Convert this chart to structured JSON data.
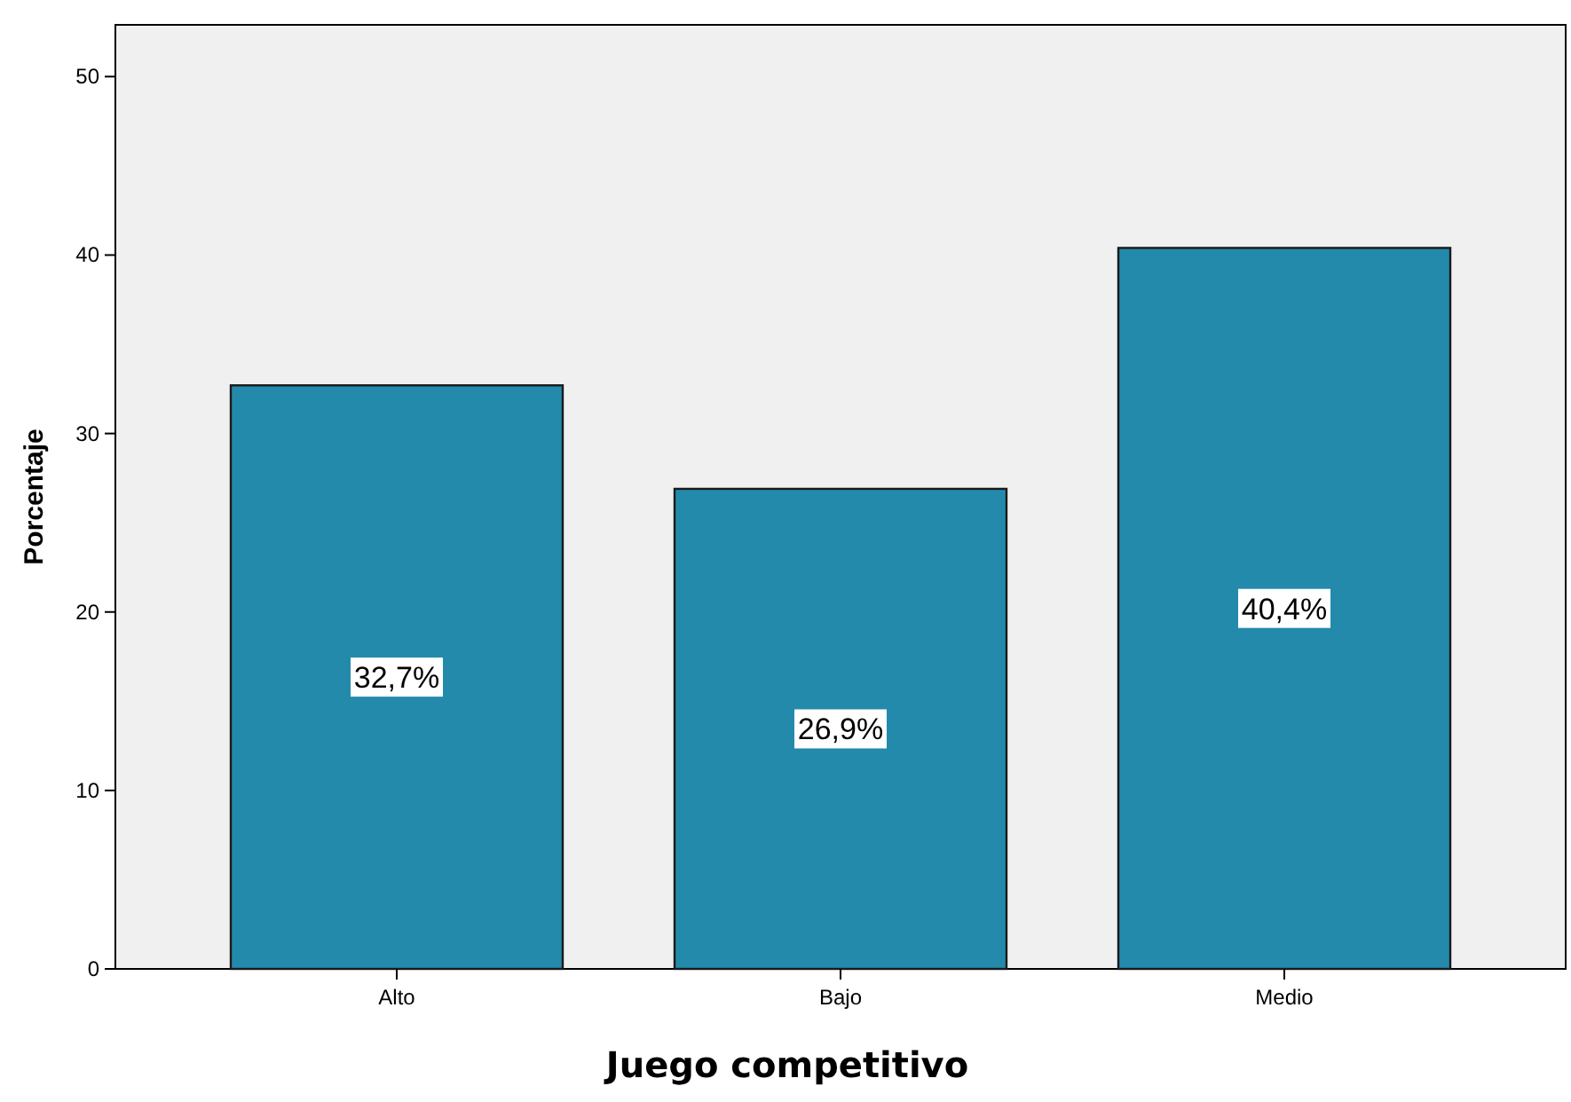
{
  "chart_data": {
    "type": "bar",
    "xlabel": "Juego competitivo",
    "ylabel": "Porcentaje",
    "categories": [
      "Alto",
      "Bajo",
      "Medio"
    ],
    "values": [
      32.7,
      26.9,
      40.4
    ],
    "value_labels": [
      "32,7%",
      "26,9%",
      "40,4%"
    ],
    "color": "#248aab",
    "ylim": [
      0,
      52.9
    ],
    "yticks": [
      0,
      10,
      20,
      30,
      40,
      50
    ],
    "grid": false
  }
}
